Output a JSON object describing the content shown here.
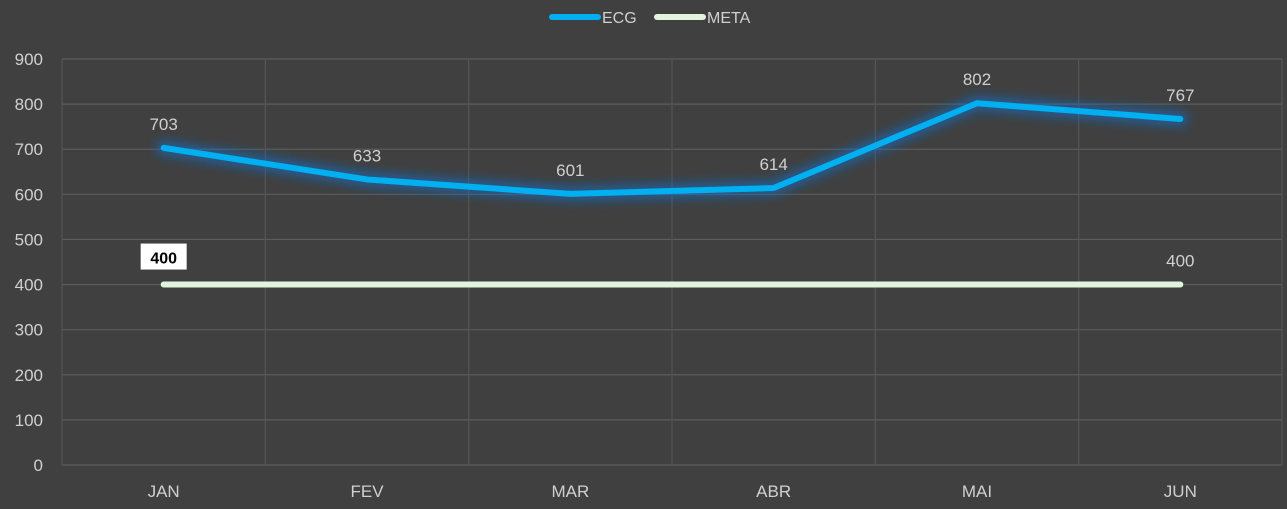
{
  "chart_data": {
    "type": "line",
    "title": "",
    "xlabel": "",
    "ylabel": "",
    "categories": [
      "JAN",
      "FEV",
      "MAR",
      "ABR",
      "MAI",
      "JUN"
    ],
    "ylim": [
      0,
      900
    ],
    "ytick_step": 100,
    "grid": true,
    "legend_position": "top-center",
    "series": [
      {
        "name": "ECG",
        "color": "#00B0F0",
        "values": [
          703,
          633,
          601,
          614,
          802,
          767
        ],
        "labels": [
          "703",
          "633",
          "601",
          "614",
          "802",
          "767"
        ],
        "labeled_points": [
          0,
          1,
          2,
          3,
          4,
          5
        ]
      },
      {
        "name": "META",
        "color": "#E2F5DC",
        "values": [
          400,
          400,
          400,
          400,
          400,
          400
        ],
        "labels": [
          "400",
          "400",
          "400",
          "400",
          "400",
          "400"
        ],
        "labeled_points": [
          0,
          5
        ],
        "highlighted_points": [
          0
        ]
      }
    ]
  }
}
